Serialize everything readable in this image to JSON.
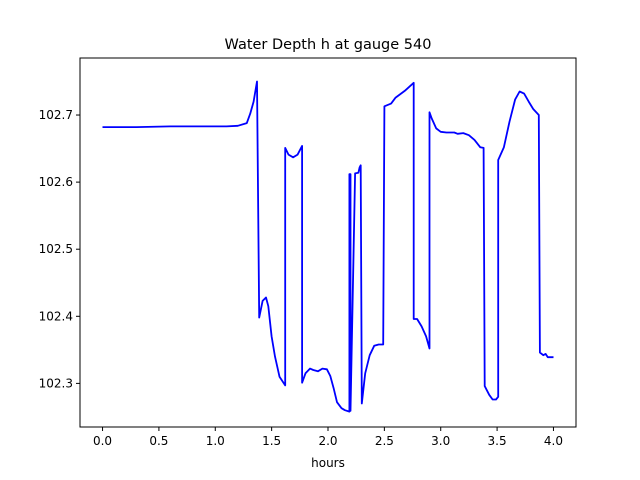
{
  "chart_data": {
    "type": "line",
    "title": "Water Depth h at gauge 540",
    "xlabel": "hours",
    "ylabel": "",
    "xlim": [
      -0.2,
      4.2
    ],
    "ylim": [
      102.235,
      102.785
    ],
    "xticks": [
      0.0,
      0.5,
      1.0,
      1.5,
      2.0,
      2.5,
      3.0,
      3.5,
      4.0
    ],
    "xtick_labels": [
      "0.0",
      "0.5",
      "1.0",
      "1.5",
      "2.0",
      "2.5",
      "3.0",
      "3.5",
      "4.0"
    ],
    "yticks": [
      102.3,
      102.4,
      102.5,
      102.6,
      102.7
    ],
    "ytick_labels": [
      "102.3",
      "102.4",
      "102.5",
      "102.6",
      "102.7"
    ],
    "grid": false,
    "series": [
      {
        "color": "#0000ff",
        "x": [
          0.0,
          0.3,
          0.6,
          0.9,
          1.1,
          1.2,
          1.28,
          1.31,
          1.34,
          1.37,
          1.39,
          1.39,
          1.42,
          1.45,
          1.47,
          1.5,
          1.53,
          1.57,
          1.62,
          1.62,
          1.65,
          1.69,
          1.73,
          1.77,
          1.77,
          1.8,
          1.84,
          1.87,
          1.91,
          1.95,
          1.99,
          2.02,
          2.05,
          2.08,
          2.12,
          2.15,
          2.19,
          2.19,
          2.2,
          2.2,
          2.24,
          2.27,
          2.28,
          2.29,
          2.3,
          2.33,
          2.37,
          2.41,
          2.45,
          2.49,
          2.5,
          2.56,
          2.6,
          2.68,
          2.76,
          2.76,
          2.79,
          2.83,
          2.87,
          2.9,
          2.9,
          2.92,
          2.96,
          3.0,
          3.05,
          3.12,
          3.15,
          3.2,
          3.25,
          3.3,
          3.35,
          3.38,
          3.39,
          3.43,
          3.46,
          3.49,
          3.51,
          3.51,
          3.56,
          3.61,
          3.66,
          3.7,
          3.74,
          3.78,
          3.82,
          3.87,
          3.88,
          3.88,
          3.91,
          3.93,
          3.95,
          4.0
        ],
        "y": [
          102.682,
          102.682,
          102.683,
          102.683,
          102.683,
          102.684,
          102.688,
          102.702,
          102.72,
          102.75,
          102.398,
          102.398,
          102.423,
          102.428,
          102.415,
          102.37,
          102.34,
          102.31,
          102.297,
          102.651,
          102.641,
          102.637,
          102.641,
          102.654,
          102.301,
          102.315,
          102.322,
          102.32,
          102.318,
          102.322,
          102.321,
          102.311,
          102.293,
          102.272,
          102.263,
          102.26,
          102.258,
          102.612,
          102.612,
          102.259,
          102.613,
          102.614,
          102.622,
          102.625,
          102.27,
          102.315,
          102.342,
          102.356,
          102.358,
          102.358,
          102.713,
          102.717,
          102.726,
          102.736,
          102.748,
          102.396,
          102.396,
          102.385,
          102.37,
          102.352,
          102.704,
          102.695,
          102.68,
          102.675,
          102.674,
          102.674,
          102.672,
          102.673,
          102.67,
          102.663,
          102.652,
          102.651,
          102.296,
          102.283,
          102.276,
          102.276,
          102.28,
          102.633,
          102.652,
          102.69,
          102.723,
          102.735,
          102.732,
          102.72,
          102.709,
          102.7,
          102.346,
          102.346,
          102.342,
          102.344,
          102.339,
          102.339
        ]
      }
    ]
  }
}
